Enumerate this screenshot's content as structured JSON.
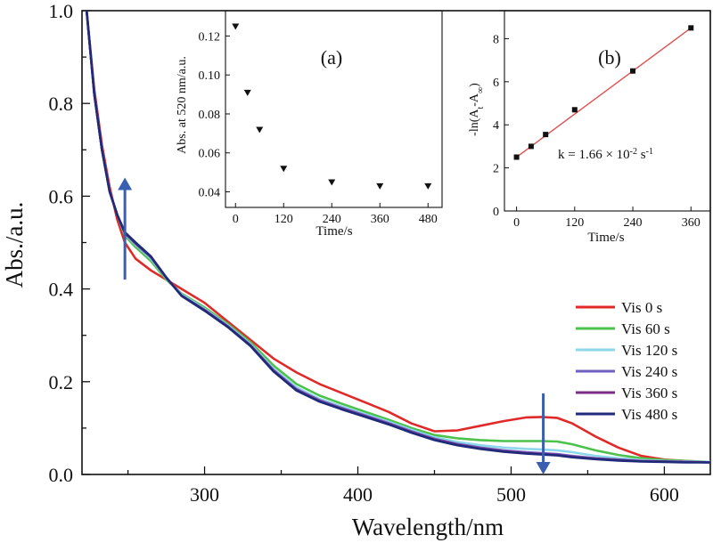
{
  "chart_data": [
    {
      "type": "line",
      "title": "",
      "xlabel": "Wavelength/nm",
      "ylabel": "Abs./a.u.",
      "xlim": [
        220,
        630
      ],
      "ylim": [
        0.0,
        1.0
      ],
      "x_ticks": [
        300,
        400,
        500,
        600
      ],
      "y_ticks": [
        0.0,
        0.2,
        0.4,
        0.6,
        0.8,
        1.0
      ],
      "x_tick_labels": [
        "300",
        "400",
        "500",
        "600"
      ],
      "y_tick_labels": [
        "0.0",
        "0.2",
        "0.4",
        "0.6",
        "0.8",
        "1.0"
      ],
      "legend_position": "bottom-right",
      "series": [
        {
          "name": "Vis 0 s",
          "color": "#e02a2a",
          "x": [
            223,
            228,
            233,
            238,
            243,
            248,
            255,
            265,
            275,
            285,
            300,
            315,
            330,
            345,
            360,
            375,
            390,
            405,
            420,
            435,
            450,
            465,
            480,
            495,
            510,
            520,
            530,
            540,
            555,
            570,
            585,
            600,
            615,
            630
          ],
          "y": [
            1.0,
            0.83,
            0.71,
            0.62,
            0.55,
            0.5,
            0.465,
            0.44,
            0.42,
            0.4,
            0.37,
            0.33,
            0.29,
            0.25,
            0.22,
            0.195,
            0.175,
            0.155,
            0.135,
            0.11,
            0.093,
            0.095,
            0.105,
            0.115,
            0.123,
            0.124,
            0.122,
            0.11,
            0.082,
            0.058,
            0.04,
            0.032,
            0.029,
            0.027
          ]
        },
        {
          "name": "Vis 60 s",
          "color": "#4cc24c",
          "x": [
            223,
            228,
            233,
            238,
            243,
            248,
            255,
            265,
            275,
            285,
            300,
            315,
            330,
            345,
            360,
            375,
            390,
            405,
            420,
            435,
            450,
            465,
            480,
            495,
            510,
            520,
            530,
            540,
            555,
            570,
            585,
            600,
            615,
            630
          ],
          "y": [
            1.0,
            0.82,
            0.7,
            0.61,
            0.56,
            0.515,
            0.49,
            0.46,
            0.42,
            0.39,
            0.36,
            0.325,
            0.285,
            0.235,
            0.195,
            0.17,
            0.152,
            0.135,
            0.118,
            0.1,
            0.085,
            0.078,
            0.074,
            0.072,
            0.072,
            0.072,
            0.071,
            0.065,
            0.052,
            0.042,
            0.035,
            0.031,
            0.029,
            0.027
          ]
        },
        {
          "name": "Vis 120 s",
          "color": "#8ed6ea",
          "x": [
            223,
            228,
            233,
            238,
            243,
            248,
            255,
            265,
            275,
            285,
            300,
            315,
            330,
            345,
            360,
            375,
            390,
            405,
            420,
            435,
            450,
            465,
            480,
            495,
            510,
            520,
            530,
            540,
            555,
            570,
            585,
            600,
            615,
            630
          ],
          "y": [
            1.0,
            0.82,
            0.7,
            0.61,
            0.56,
            0.518,
            0.495,
            0.465,
            0.423,
            0.388,
            0.357,
            0.322,
            0.281,
            0.228,
            0.188,
            0.163,
            0.146,
            0.13,
            0.114,
            0.096,
            0.08,
            0.07,
            0.063,
            0.058,
            0.055,
            0.054,
            0.052,
            0.048,
            0.04,
            0.035,
            0.031,
            0.029,
            0.028,
            0.027
          ]
        },
        {
          "name": "Vis 240 s",
          "color": "#6f5fbf",
          "x": [
            223,
            228,
            233,
            238,
            243,
            248,
            255,
            265,
            275,
            285,
            300,
            315,
            330,
            345,
            360,
            375,
            390,
            405,
            420,
            435,
            450,
            465,
            480,
            495,
            510,
            520,
            530,
            540,
            555,
            570,
            585,
            600,
            615,
            630
          ],
          "y": [
            1.0,
            0.82,
            0.7,
            0.61,
            0.56,
            0.52,
            0.497,
            0.468,
            0.424,
            0.386,
            0.355,
            0.32,
            0.279,
            0.225,
            0.184,
            0.16,
            0.143,
            0.127,
            0.111,
            0.093,
            0.077,
            0.066,
            0.058,
            0.052,
            0.048,
            0.046,
            0.044,
            0.04,
            0.035,
            0.032,
            0.029,
            0.028,
            0.027,
            0.026
          ]
        },
        {
          "name": "Vis 360 s",
          "color": "#7a2b86",
          "x": [
            223,
            228,
            233,
            238,
            243,
            248,
            255,
            265,
            275,
            285,
            300,
            315,
            330,
            345,
            360,
            375,
            390,
            405,
            420,
            435,
            450,
            465,
            480,
            495,
            510,
            520,
            530,
            540,
            555,
            570,
            585,
            600,
            615,
            630
          ],
          "y": [
            1.0,
            0.82,
            0.7,
            0.61,
            0.56,
            0.521,
            0.499,
            0.469,
            0.424,
            0.385,
            0.354,
            0.319,
            0.278,
            0.223,
            0.182,
            0.158,
            0.141,
            0.125,
            0.109,
            0.091,
            0.075,
            0.064,
            0.056,
            0.05,
            0.046,
            0.044,
            0.042,
            0.038,
            0.034,
            0.031,
            0.029,
            0.028,
            0.027,
            0.026
          ]
        },
        {
          "name": "Vis 480 s",
          "color": "#1f2a78",
          "x": [
            223,
            228,
            233,
            238,
            243,
            248,
            255,
            265,
            275,
            285,
            300,
            315,
            330,
            345,
            360,
            375,
            390,
            405,
            420,
            435,
            450,
            465,
            480,
            495,
            510,
            520,
            530,
            540,
            555,
            570,
            585,
            600,
            615,
            630
          ],
          "y": [
            1.0,
            0.82,
            0.7,
            0.61,
            0.56,
            0.522,
            0.5,
            0.47,
            0.425,
            0.385,
            0.353,
            0.318,
            0.277,
            0.222,
            0.181,
            0.157,
            0.14,
            0.124,
            0.108,
            0.09,
            0.074,
            0.063,
            0.055,
            0.049,
            0.045,
            0.043,
            0.041,
            0.037,
            0.033,
            0.03,
            0.028,
            0.027,
            0.026,
            0.026
          ]
        }
      ],
      "annotations": [
        {
          "type": "arrow",
          "direction": "up",
          "color": "#3a5fb0",
          "x": 248,
          "y_from": 0.42,
          "y_to": 0.64
        },
        {
          "type": "arrow",
          "direction": "down",
          "color": "#3a5fb0",
          "x": 521,
          "y_from": 0.175,
          "y_to": 0.0
        }
      ]
    },
    {
      "type": "scatter",
      "panel_label": "(a)",
      "xlabel": "Time/s",
      "ylabel": "Abs. at 520 nm/a.u.",
      "xlim": [
        -25,
        515
      ],
      "ylim": [
        0.032,
        0.133
      ],
      "x_ticks": [
        0,
        120,
        240,
        360,
        480
      ],
      "y_ticks": [
        0.04,
        0.06,
        0.08,
        0.1,
        0.12
      ],
      "x_tick_labels": [
        "0",
        "120",
        "240",
        "360",
        "480"
      ],
      "y_tick_labels": [
        "0.04",
        "0.06",
        "0.08",
        "0.10",
        "0.12"
      ],
      "marker": "triangle-down",
      "x": [
        0,
        30,
        60,
        120,
        240,
        360,
        480
      ],
      "y": [
        0.125,
        0.091,
        0.072,
        0.052,
        0.045,
        0.043,
        0.043
      ]
    },
    {
      "type": "scatter",
      "panel_label": "(b)",
      "xlabel": "Time/s",
      "ylabel": "-ln(A",
      "ylabel_sub_t": "t",
      "ylabel_mid": "-A",
      "ylabel_sub_inf": "∞",
      "ylabel_end": ")",
      "xlim": [
        -25,
        400
      ],
      "ylim": [
        0,
        9.3
      ],
      "x_ticks": [
        0,
        120,
        240,
        360
      ],
      "y_ticks": [
        0,
        2,
        4,
        6,
        8
      ],
      "x_tick_labels": [
        "0",
        "120",
        "240",
        "360"
      ],
      "y_tick_labels": [
        "0",
        "2",
        "4",
        "6",
        "8"
      ],
      "marker": "square",
      "x": [
        0,
        30,
        60,
        120,
        240,
        360
      ],
      "y": [
        2.5,
        3.0,
        3.55,
        4.7,
        6.5,
        8.5
      ],
      "fit": {
        "type": "linear",
        "color": "#e05050",
        "x": [
          0,
          360
        ],
        "y": [
          2.5,
          8.5
        ]
      },
      "annotation_prefix": "k = 1.66 × 10",
      "annotation_exp": "-2",
      "annotation_unit": " s",
      "annotation_unit_exp": "-1"
    }
  ]
}
